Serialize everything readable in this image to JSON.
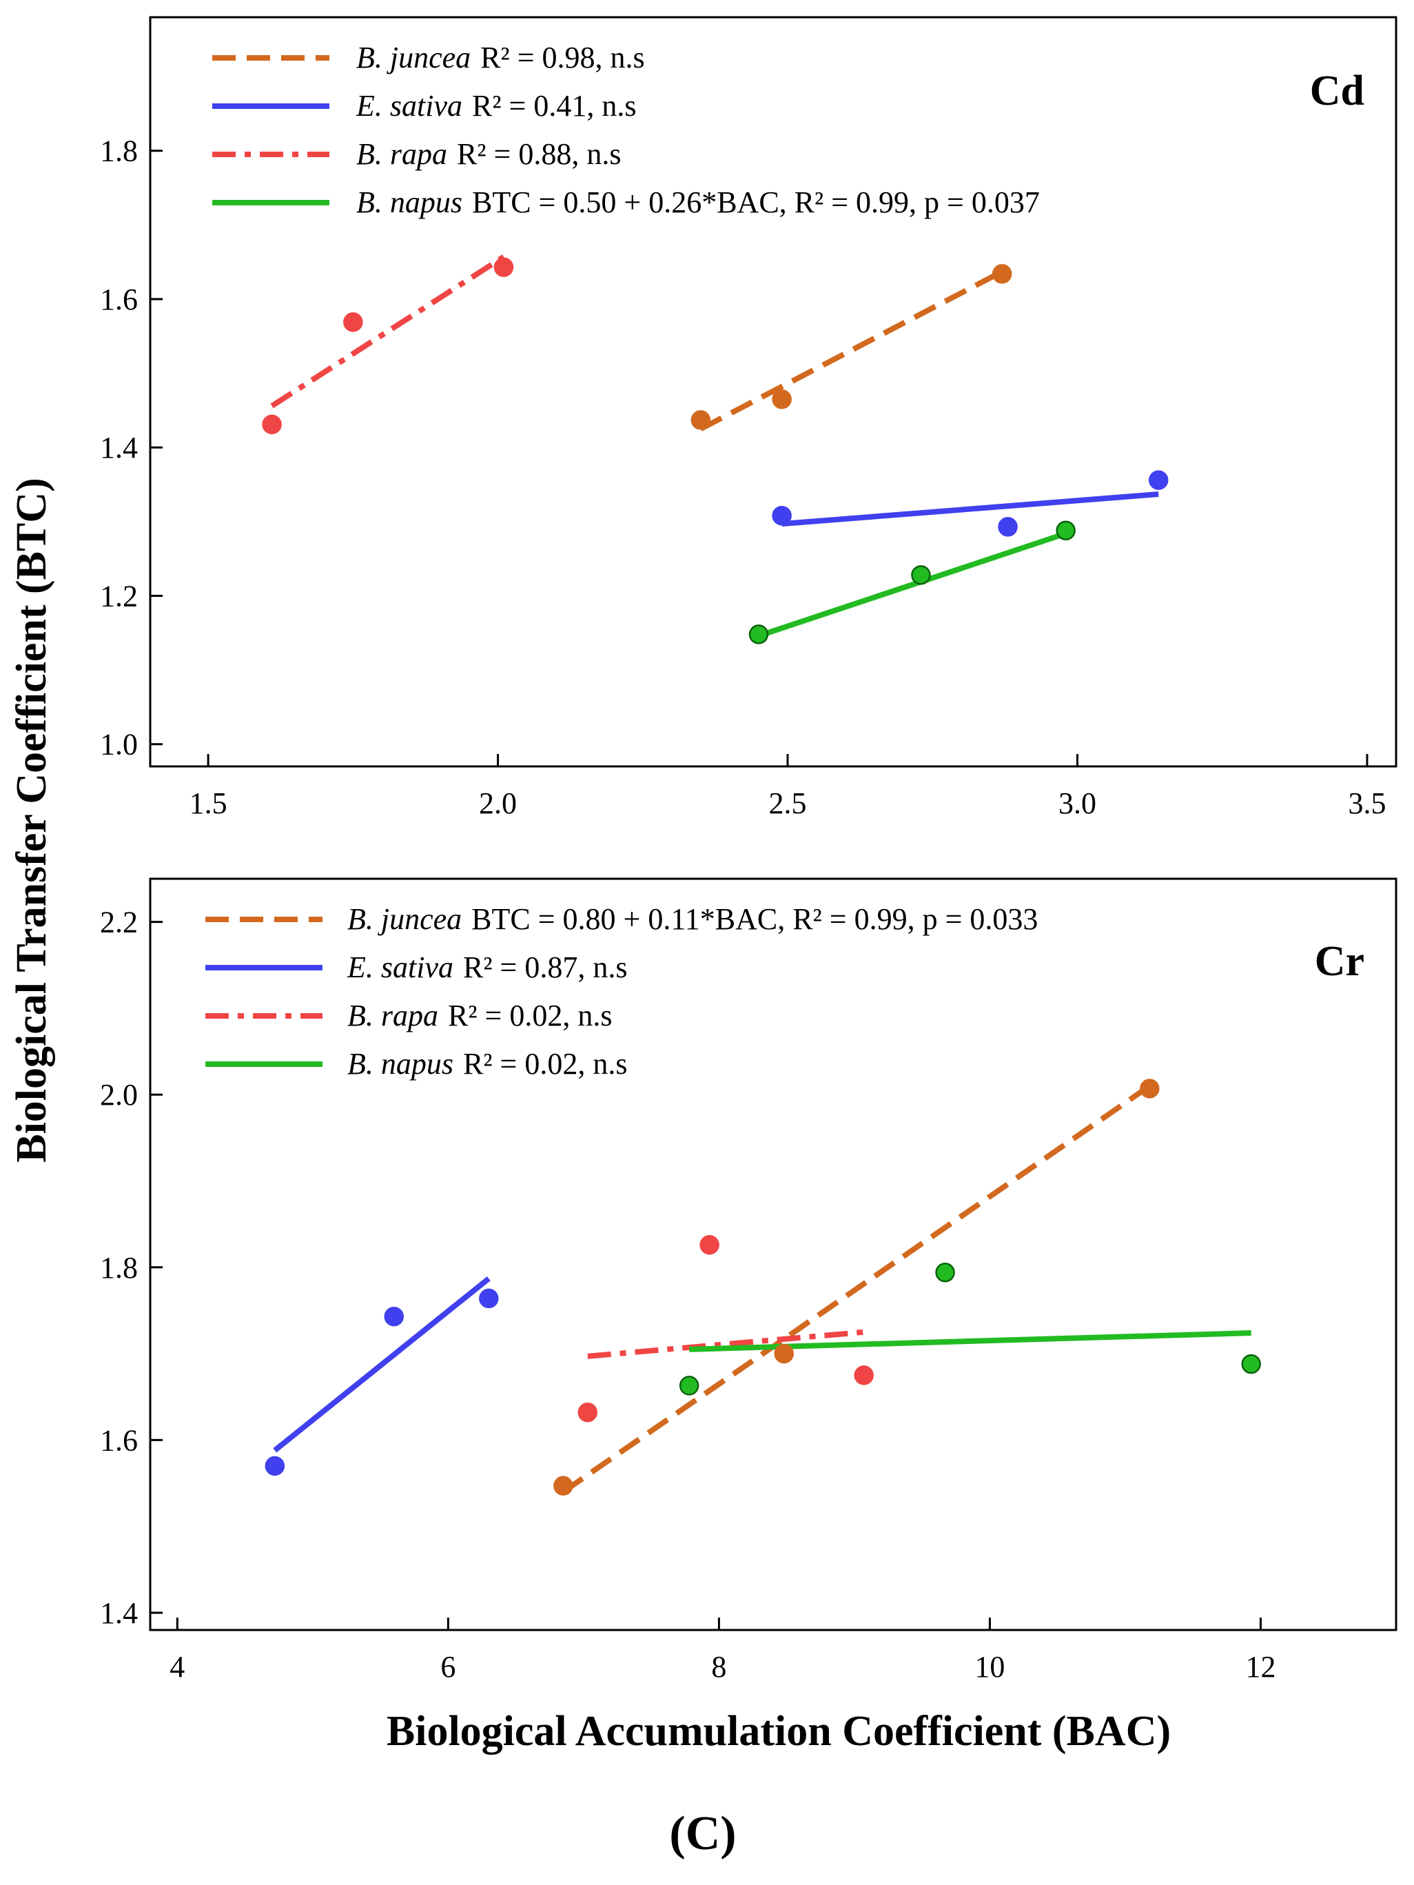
{
  "figure_label": "(C)",
  "shared_ylabel": "Biological Transfer Coefficient (BTC)",
  "shared_xlabel": "Biological Accumulation Coefficient (BAC)",
  "chart_data": [
    {
      "type": "scatter",
      "panel_label": "Cd",
      "xlabel": "",
      "ylabel": "Biological Transfer Coefficient (BTC)",
      "xlim": [
        1.4,
        3.55
      ],
      "ylim": [
        0.97,
        1.98
      ],
      "xticks": [
        1.5,
        2.0,
        2.5,
        3.0,
        3.5
      ],
      "xtick_labels": [
        "1.5",
        "2.0",
        "2.5",
        "3.0",
        "3.5"
      ],
      "yticks": [
        1.0,
        1.2,
        1.4,
        1.6,
        1.8
      ],
      "ytick_labels": [
        "1.0",
        "1.2",
        "1.4",
        "1.6",
        "1.8"
      ],
      "grid": false,
      "legend_position": "top-left",
      "series": [
        {
          "name": "B. juncea",
          "stat": "R² = 0.98, n.s",
          "color": "#d2691e",
          "line_style": "dashed",
          "marker_edge": "#d2691e",
          "x": [
            2.35,
            2.49,
            2.87
          ],
          "y": [
            1.437,
            1.465,
            1.634
          ],
          "fit_x": [
            2.35,
            2.87
          ],
          "fit_y": [
            1.425,
            1.637
          ]
        },
        {
          "name": "E. sativa",
          "stat": "R² = 0.41, n.s",
          "color": "#4040ee",
          "line_style": "solid",
          "marker_edge": "#4040ee",
          "x": [
            2.49,
            2.88,
            3.14
          ],
          "y": [
            1.308,
            1.293,
            1.356
          ],
          "fit_x": [
            2.49,
            3.14
          ],
          "fit_y": [
            1.297,
            1.337
          ]
        },
        {
          "name": "B. rapa",
          "stat": "R² = 0.88, n.s",
          "color": "#f04545",
          "line_style": "dashdot",
          "marker_edge": "#f04545",
          "x": [
            1.61,
            1.75,
            2.01
          ],
          "y": [
            1.431,
            1.569,
            1.643
          ],
          "fit_x": [
            1.61,
            2.01
          ],
          "fit_y": [
            1.456,
            1.657
          ]
        },
        {
          "name": "B. napus",
          "stat": "BTC = 0.50 + 0.26*BAC, R² = 0.99, p = 0.037",
          "color": "#22bb22",
          "line_style": "solid",
          "marker_edge": "#0a640a",
          "x": [
            2.45,
            2.73,
            2.98
          ],
          "y": [
            1.148,
            1.228,
            1.288
          ],
          "fit_x": [
            2.45,
            2.98
          ],
          "fit_y": [
            1.146,
            1.284
          ]
        }
      ]
    },
    {
      "type": "scatter",
      "panel_label": "Cr",
      "xlabel": "Biological Accumulation Coefficient (BAC)",
      "ylabel": "Biological Transfer Coefficient (BTC)",
      "xlim": [
        3.8,
        13.0
      ],
      "ylim": [
        1.38,
        2.25
      ],
      "xticks": [
        4,
        6,
        8,
        10,
        12
      ],
      "xtick_labels": [
        "4",
        "6",
        "8",
        "10",
        "12"
      ],
      "yticks": [
        1.4,
        1.6,
        1.8,
        2.0,
        2.2
      ],
      "ytick_labels": [
        "1.4",
        "1.6",
        "1.8",
        "2.0",
        "2.2"
      ],
      "grid": false,
      "legend_position": "top-left",
      "series": [
        {
          "name": "B. juncea",
          "stat": "BTC = 0.80 + 0.11*BAC, R² = 0.99, p = 0.033",
          "color": "#d2691e",
          "line_style": "dashed",
          "marker_edge": "#d2691e",
          "x": [
            6.85,
            8.48,
            11.18
          ],
          "y": [
            1.547,
            1.7,
            2.007
          ],
          "fit_x": [
            6.85,
            11.18
          ],
          "fit_y": [
            1.54,
            2.01
          ]
        },
        {
          "name": "E. sativa",
          "stat": "R² = 0.87, n.s",
          "color": "#4040ee",
          "line_style": "solid",
          "marker_edge": "#4040ee",
          "x": [
            4.72,
            5.6,
            6.3
          ],
          "y": [
            1.57,
            1.743,
            1.764
          ],
          "fit_x": [
            4.72,
            6.3
          ],
          "fit_y": [
            1.588,
            1.787
          ]
        },
        {
          "name": "B. rapa",
          "stat": "R² = 0.02, n.s",
          "color": "#f04545",
          "line_style": "dashdot",
          "marker_edge": "#f04545",
          "x": [
            7.03,
            7.93,
            9.07
          ],
          "y": [
            1.632,
            1.826,
            1.675
          ],
          "fit_x": [
            7.03,
            9.07
          ],
          "fit_y": [
            1.697,
            1.725
          ]
        },
        {
          "name": "B. napus",
          "stat": "R² = 0.02, n.s",
          "color": "#22bb22",
          "line_style": "solid",
          "marker_edge": "#0a640a",
          "x": [
            7.78,
            9.67,
            11.93
          ],
          "y": [
            1.663,
            1.794,
            1.688
          ],
          "fit_x": [
            7.78,
            11.93
          ],
          "fit_y": [
            1.705,
            1.724
          ]
        }
      ]
    }
  ]
}
